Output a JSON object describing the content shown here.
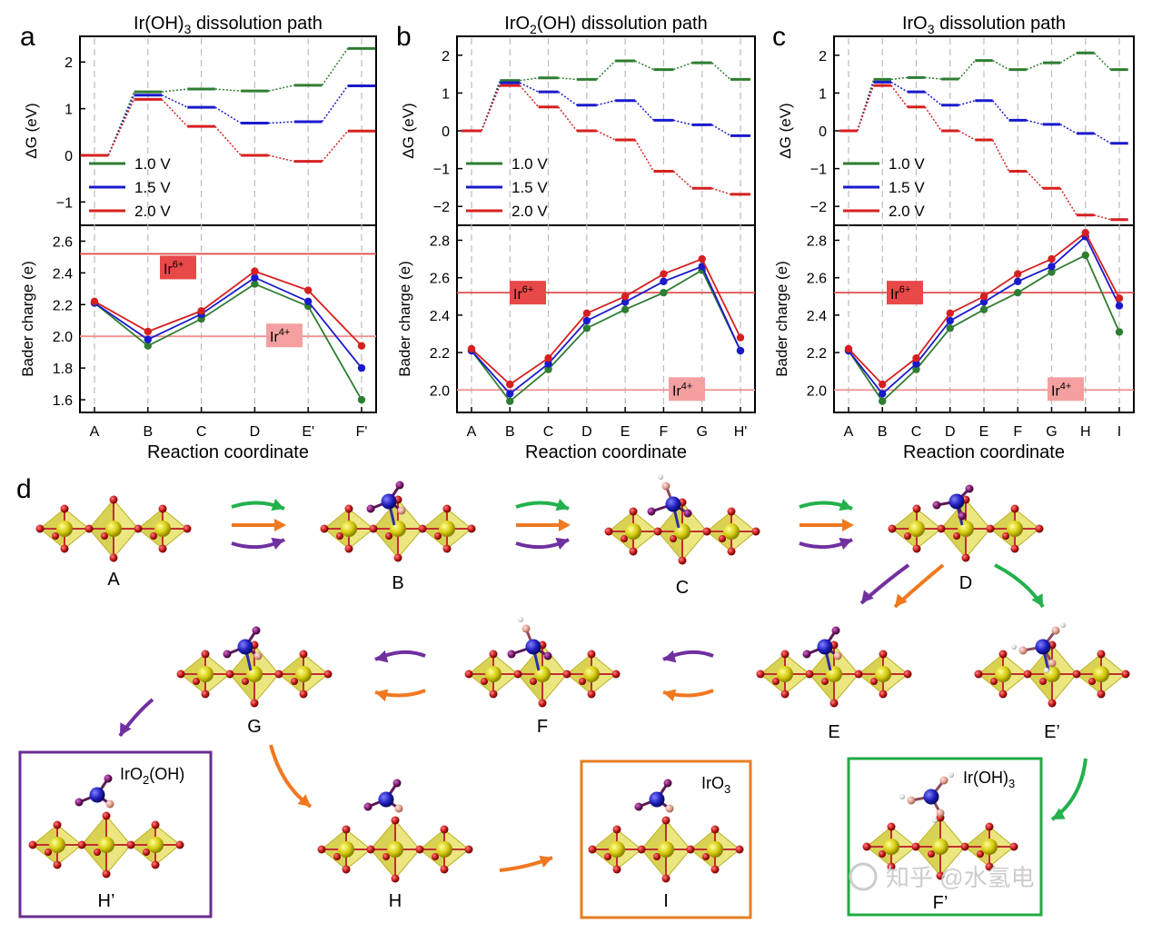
{
  "figure": {
    "panel_d_letter": "d",
    "legend": [
      {
        "label": "1.0 V",
        "color": "#2e7d32"
      },
      {
        "label": "1.5 V",
        "color": "#1a1acc"
      },
      {
        "label": "2.0 V",
        "color": "#d62020"
      }
    ],
    "ir6_label": "Ir",
    "ir6_sup": "6+",
    "ir4_label": "Ir",
    "ir4_sup": "4+",
    "ylabel_top": "ΔG (eV)",
    "ylabel_bottom": "Bader charge (e)",
    "xlabel": "Reaction coordinate",
    "watermark": "知乎 @水氢电"
  },
  "chart_data": [
    {
      "type": "line",
      "panel": "a",
      "title_main": "Ir(OH)",
      "title_sub": "3",
      "title_rest": " dissolution path",
      "categories": [
        "A",
        "B",
        "C",
        "D",
        "E'",
        "F'"
      ],
      "top": {
        "ylim": [
          -1.5,
          2.55
        ],
        "ticks": [
          -1,
          0,
          1,
          2
        ],
        "series": [
          {
            "name": "1.0 V",
            "values": [
              0,
              1.36,
              1.42,
              1.38,
              1.5,
              2.29
            ]
          },
          {
            "name": "1.5 V",
            "values": [
              0,
              1.29,
              1.03,
              0.69,
              0.72,
              1.49
            ]
          },
          {
            "name": "2.0 V",
            "values": [
              0,
              1.2,
              0.62,
              0.0,
              -0.13,
              0.52
            ]
          }
        ]
      },
      "bottom": {
        "ylim": [
          1.52,
          2.7
        ],
        "ticks": [
          1.6,
          1.8,
          2.0,
          2.2,
          2.4,
          2.6
        ],
        "ir6": 2.52,
        "ir4": 2.0,
        "series": [
          {
            "name": "1.0 V",
            "values": [
              2.21,
              1.94,
              2.11,
              2.33,
              2.19,
              1.6
            ]
          },
          {
            "name": "1.5 V",
            "values": [
              2.21,
              1.98,
              2.14,
              2.37,
              2.22,
              1.8
            ]
          },
          {
            "name": "2.0 V",
            "values": [
              2.22,
              2.03,
              2.16,
              2.41,
              2.29,
              1.94
            ]
          }
        ]
      }
    },
    {
      "type": "line",
      "panel": "b",
      "title_main": "IrO",
      "title_sub": "2",
      "title_rest": "(OH) dissolution path",
      "categories": [
        "A",
        "B",
        "C",
        "D",
        "E",
        "F",
        "G",
        "H'"
      ],
      "top": {
        "ylim": [
          -2.5,
          2.5
        ],
        "ticks": [
          -2,
          -1,
          0,
          1,
          2
        ],
        "series": [
          {
            "name": "1.0 V",
            "values": [
              0,
              1.33,
              1.4,
              1.36,
              1.85,
              1.62,
              1.8,
              1.36
            ]
          },
          {
            "name": "1.5 V",
            "values": [
              0,
              1.27,
              1.03,
              0.68,
              0.8,
              0.28,
              0.16,
              -0.13
            ]
          },
          {
            "name": "2.0 V",
            "values": [
              0,
              1.2,
              0.63,
              0.0,
              -0.24,
              -1.07,
              -1.52,
              -1.68
            ]
          }
        ]
      },
      "bottom": {
        "ylim": [
          1.88,
          2.88
        ],
        "ticks": [
          2.0,
          2.2,
          2.4,
          2.6,
          2.8
        ],
        "ir6": 2.52,
        "ir4": 2.0,
        "series": [
          {
            "name": "1.0 V",
            "values": [
              2.21,
              1.94,
              2.11,
              2.33,
              2.43,
              2.52,
              2.64,
              2.21
            ]
          },
          {
            "name": "1.5 V",
            "values": [
              2.21,
              1.98,
              2.14,
              2.37,
              2.47,
              2.58,
              2.66,
              2.21
            ]
          },
          {
            "name": "2.0 V",
            "values": [
              2.22,
              2.03,
              2.17,
              2.41,
              2.5,
              2.62,
              2.7,
              2.28
            ]
          }
        ]
      }
    },
    {
      "type": "line",
      "panel": "c",
      "title_main": "IrO",
      "title_sub": "3",
      "title_rest": " dissolution path",
      "categories": [
        "A",
        "B",
        "C",
        "D",
        "E",
        "F",
        "G",
        "H",
        "I"
      ],
      "top": {
        "ylim": [
          -2.5,
          2.5
        ],
        "ticks": [
          -2,
          -1,
          0,
          1,
          2
        ],
        "series": [
          {
            "name": "1.0 V",
            "values": [
              0,
              1.36,
              1.41,
              1.37,
              1.86,
              1.62,
              1.8,
              2.06,
              1.62
            ]
          },
          {
            "name": "1.5 V",
            "values": [
              0,
              1.29,
              1.03,
              0.68,
              0.8,
              0.28,
              0.17,
              -0.07,
              -0.33
            ]
          },
          {
            "name": "2.0 V",
            "values": [
              0,
              1.2,
              0.63,
              0.0,
              -0.24,
              -1.07,
              -1.52,
              -2.23,
              -2.35
            ]
          }
        ]
      },
      "bottom": {
        "ylim": [
          1.88,
          2.88
        ],
        "ticks": [
          2.0,
          2.2,
          2.4,
          2.6,
          2.8
        ],
        "ir6": 2.52,
        "ir4": 2.0,
        "series": [
          {
            "name": "1.0 V",
            "values": [
              2.21,
              1.94,
              2.11,
              2.33,
              2.43,
              2.52,
              2.63,
              2.72,
              2.31
            ]
          },
          {
            "name": "1.5 V",
            "values": [
              2.21,
              1.98,
              2.14,
              2.37,
              2.47,
              2.58,
              2.66,
              2.82,
              2.45
            ]
          },
          {
            "name": "2.0 V",
            "values": [
              2.22,
              2.03,
              2.17,
              2.41,
              2.5,
              2.62,
              2.7,
              2.84,
              2.49
            ]
          }
        ]
      }
    }
  ],
  "structures": {
    "states": [
      "A",
      "B",
      "C",
      "D",
      "E",
      "E’",
      "G",
      "F",
      "H’",
      "H",
      "I",
      "F’"
    ],
    "boxes": [
      {
        "main": "IrO",
        "sub": "2",
        "rest": "(OH)",
        "color": "#6a2c91"
      },
      {
        "main": "IrO",
        "sub": "3",
        "rest": "",
        "color": "#e67e22"
      },
      {
        "main": "Ir(OH)",
        "sub": "3",
        "rest": "",
        "color": "#22aa44"
      }
    ],
    "arrow_colors": {
      "green": "#22b14c",
      "orange": "#f07820",
      "purple": "#7030a0"
    }
  }
}
